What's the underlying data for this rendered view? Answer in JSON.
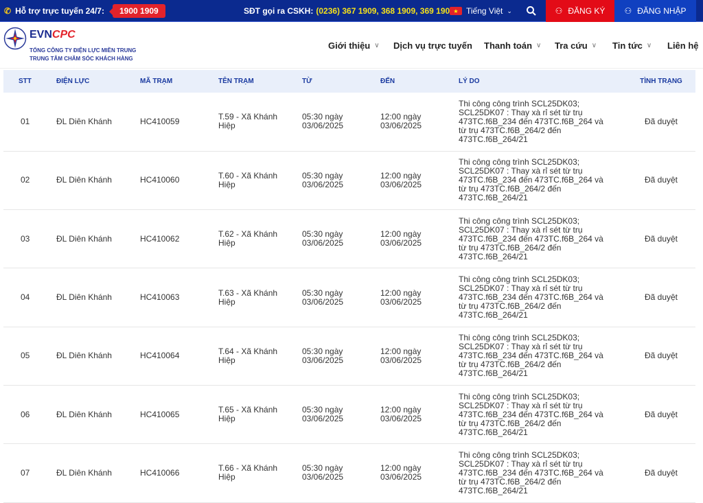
{
  "topbar": {
    "support_label": "Hỗ trợ trực tuyến 24/7:",
    "hotline": "1900 1909",
    "cskh_label": "SĐT gọi ra CSKH:",
    "cskh_numbers": "(0236) 367 1909, 368 1909, 369 1909",
    "language": "Tiếng Việt",
    "register": "ĐĂNG KÝ",
    "login": "ĐĂNG NHẬP"
  },
  "header": {
    "brand_evn": "EVN",
    "brand_cpc": "CPC",
    "subtitle1": "TỔNG CÔNG TY ĐIỆN LỰC MIỀN TRUNG",
    "subtitle2": "TRUNG TÂM CHĂM SÓC KHÁCH HÀNG"
  },
  "nav": [
    {
      "label": "Giới thiệu"
    },
    {
      "label": "Dịch vụ trực tuyến"
    },
    {
      "label": "Thanh toán"
    },
    {
      "label": "Tra cứu"
    },
    {
      "label": "Tin tức"
    },
    {
      "label": "Liên hệ"
    }
  ],
  "table": {
    "headers": [
      "STT",
      "ĐIỆN LỰC",
      "MÃ TRẠM",
      "TÊN TRẠM",
      "TỪ",
      "ĐẾN",
      "LÝ DO",
      "TÌNH TRẠNG"
    ],
    "rows": [
      {
        "stt": "01",
        "dl": "ĐL Diên Khánh",
        "ma": "HC410059",
        "ten": "T.59 - Xã Khánh Hiệp",
        "tu": "05:30 ngày 03/06/2025",
        "den": "12:00 ngày 03/06/2025",
        "lydo": "Thi công công trình SCL25DK03; SCL25DK07 : Thay xà rỉ sét từ trụ 473TC.f6B_234 đến 473TC.f6B_264 và từ trụ 473TC.f6B_264/2 đến 473TC.f6B_264/21",
        "tt": "Đã duyệt"
      },
      {
        "stt": "02",
        "dl": "ĐL Diên Khánh",
        "ma": "HC410060",
        "ten": "T.60 - Xã Khánh Hiệp",
        "tu": "05:30 ngày 03/06/2025",
        "den": "12:00 ngày 03/06/2025",
        "lydo": "Thi công công trình SCL25DK03; SCL25DK07 : Thay xà rỉ sét từ trụ 473TC.f6B_234 đến 473TC.f6B_264 và từ trụ 473TC.f6B_264/2 đến 473TC.f6B_264/21",
        "tt": "Đã duyệt"
      },
      {
        "stt": "03",
        "dl": "ĐL Diên Khánh",
        "ma": "HC410062",
        "ten": "T.62 - Xã Khánh Hiệp",
        "tu": "05:30 ngày 03/06/2025",
        "den": "12:00 ngày 03/06/2025",
        "lydo": "Thi công công trình SCL25DK03; SCL25DK07 : Thay xà rỉ sét từ trụ 473TC.f6B_234 đến 473TC.f6B_264 và từ trụ 473TC.f6B_264/2 đến 473TC.f6B_264/21",
        "tt": "Đã duyệt"
      },
      {
        "stt": "04",
        "dl": "ĐL Diên Khánh",
        "ma": "HC410063",
        "ten": "T.63 - Xã Khánh Hiệp",
        "tu": "05:30 ngày 03/06/2025",
        "den": "12:00 ngày 03/06/2025",
        "lydo": "Thi công công trình SCL25DK03; SCL25DK07 : Thay xà rỉ sét từ trụ 473TC.f6B_234 đến 473TC.f6B_264 và từ trụ 473TC.f6B_264/2 đến 473TC.f6B_264/21",
        "tt": "Đã duyệt"
      },
      {
        "stt": "05",
        "dl": "ĐL Diên Khánh",
        "ma": "HC410064",
        "ten": "T.64 - Xã Khánh Hiệp",
        "tu": "05:30 ngày 03/06/2025",
        "den": "12:00 ngày 03/06/2025",
        "lydo": "Thi công công trình SCL25DK03; SCL25DK07 : Thay xà rỉ sét từ trụ 473TC.f6B_234 đến 473TC.f6B_264 và từ trụ 473TC.f6B_264/2 đến 473TC.f6B_264/21",
        "tt": "Đã duyệt"
      },
      {
        "stt": "06",
        "dl": "ĐL Diên Khánh",
        "ma": "HC410065",
        "ten": "T.65 - Xã Khánh Hiệp",
        "tu": "05:30 ngày 03/06/2025",
        "den": "12:00 ngày 03/06/2025",
        "lydo": "Thi công công trình SCL25DK03; SCL25DK07 : Thay xà rỉ sét từ trụ 473TC.f6B_234 đến 473TC.f6B_264 và từ trụ 473TC.f6B_264/2 đến 473TC.f6B_264/21",
        "tt": "Đã duyệt"
      },
      {
        "stt": "07",
        "dl": "ĐL Diên Khánh",
        "ma": "HC410066",
        "ten": "T.66 - Xã Khánh Hiệp",
        "tu": "05:30 ngày 03/06/2025",
        "den": "12:00 ngày 03/06/2025",
        "lydo": "Thi công công trình SCL25DK03; SCL25DK07 : Thay xà rỉ sét từ trụ 473TC.f6B_234 đến 473TC.f6B_264 và từ trụ 473TC.f6B_264/2 đến 473TC.f6B_264/21",
        "tt": "Đã duyệt"
      }
    ]
  }
}
